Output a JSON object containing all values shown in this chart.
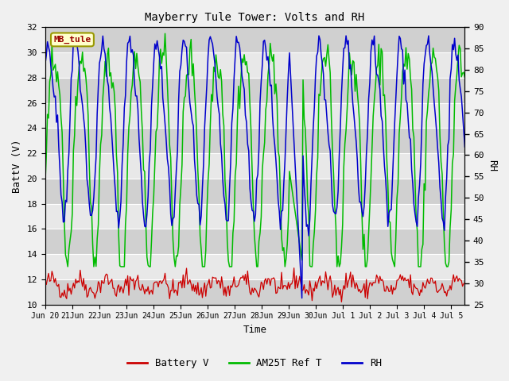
{
  "title": "Mayberry Tule Tower: Volts and RH",
  "xlabel": "Time",
  "ylabel_left": "BattV (V)",
  "ylabel_right": "RH",
  "label_box": "MB_tule",
  "ylim_left": [
    10,
    32
  ],
  "ylim_right": [
    25,
    90
  ],
  "yticks_left": [
    10,
    12,
    14,
    16,
    18,
    20,
    22,
    24,
    26,
    28,
    30,
    32
  ],
  "yticks_right": [
    25,
    30,
    35,
    40,
    45,
    50,
    55,
    60,
    65,
    70,
    75,
    80,
    85,
    90
  ],
  "bg_color": "#f0f0f0",
  "plot_bg_light": "#e8e8e8",
  "plot_bg_dark": "#d0d0d0",
  "grid_color": "#ffffff",
  "battery_color": "#cc0000",
  "am25t_color": "#00bb00",
  "rh_color": "#0000cc",
  "legend_items": [
    "Battery V",
    "AM25T Ref T",
    "RH"
  ],
  "legend_colors": [
    "#cc0000",
    "#00bb00",
    "#0000cc"
  ],
  "figsize": [
    6.4,
    4.8
  ],
  "dpi": 100
}
